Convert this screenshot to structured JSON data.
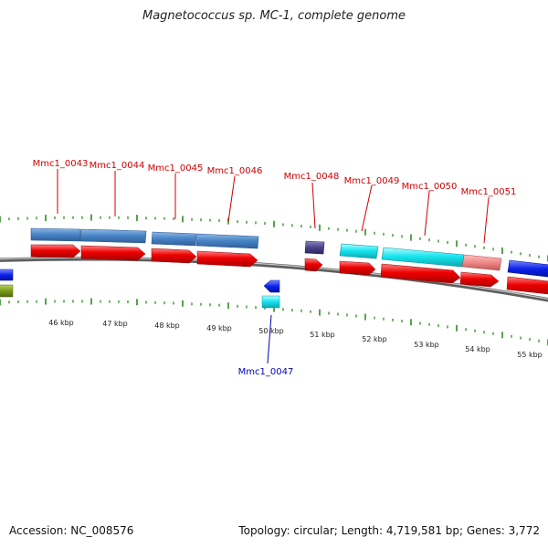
{
  "title": "Magnetococcus sp. MC-1, complete genome",
  "footer": {
    "accession": "Accession: NC_008576",
    "summary": "Topology: circular; Length: 4,719,581 bp; Genes: 3,772"
  },
  "colors": {
    "label_top": "#cc0000",
    "label_bottom": "#0000bb",
    "tick": "#2e8b22",
    "backbone": "#7a7a7a",
    "forward_gene": "#ee0000",
    "cog_blue": "#4a86c8",
    "cog_cyan": "#19e6f0",
    "cog_navy": "#4a4488",
    "cog_pink": "#f08888",
    "reverse_blue": "#0a20e8",
    "reverse_olive": "#7a9a1c"
  },
  "scale_labels": [
    "46 kbp",
    "47 kbp",
    "48 kbp",
    "49 kbp",
    "50 kbp",
    "51 kbp",
    "52 kbp",
    "53 kbp",
    "54 kbp",
    "55 kbp"
  ],
  "gene_labels": [
    {
      "text": "Mmc1_0043",
      "strand": "top"
    },
    {
      "text": "Mmc1_0044",
      "strand": "top"
    },
    {
      "text": "Mmc1_0045",
      "strand": "top"
    },
    {
      "text": "Mmc1_0046",
      "strand": "top"
    },
    {
      "text": "Mmc1_0048",
      "strand": "top"
    },
    {
      "text": "Mmc1_0049",
      "strand": "top"
    },
    {
      "text": "Mmc1_0050",
      "strand": "top"
    },
    {
      "text": "Mmc1_0051",
      "strand": "top"
    },
    {
      "text": "Mmc1_0047",
      "strand": "bottom"
    }
  ]
}
